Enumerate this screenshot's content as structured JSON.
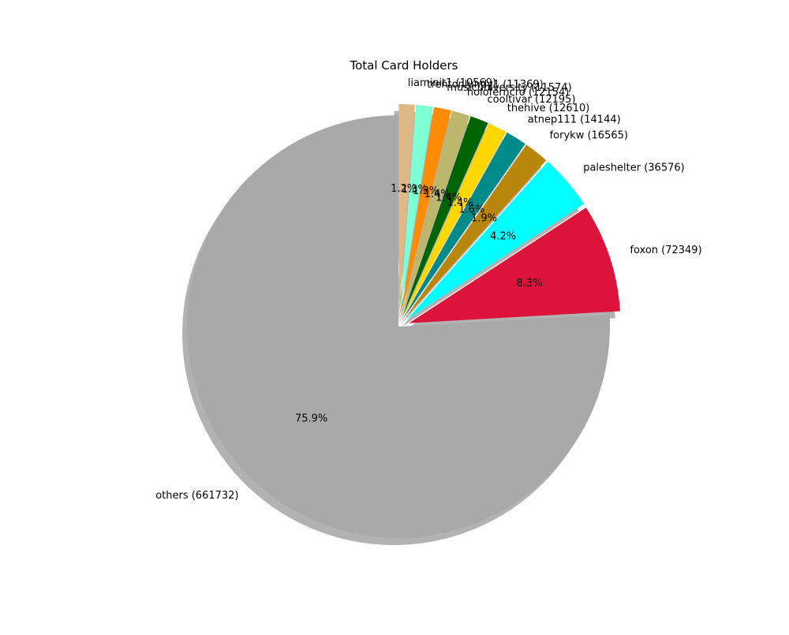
{
  "chart_data": {
    "type": "pie",
    "title": "Total Card Holders",
    "start_angle_deg": 90,
    "direction": "clockwise",
    "shadow": true,
    "slices": [
      {
        "name": "liaminit1",
        "label": "liaminit1 (10569)",
        "value": 10569,
        "pct_label": "1.2%",
        "color": "#DEB887",
        "explode": true
      },
      {
        "name": "trentonlundy1",
        "label": "trentonlundy1 (11369)",
        "value": 11369,
        "pct_label": "1.3%",
        "color": "#7FFFD4",
        "explode": true
      },
      {
        "name": "musicuniversity",
        "label": "musicuniversity (11574)",
        "value": 11574,
        "pct_label": "1.3%",
        "color": "#FF8C00",
        "explode": true
      },
      {
        "name": "holoferncro",
        "label": "holoferncro (12154)",
        "value": 12154,
        "pct_label": "1.4%",
        "color": "#BDB76B",
        "explode": true
      },
      {
        "name": "cooltivar",
        "label": "cooltivar (12195)",
        "value": 12195,
        "pct_label": "1.4%",
        "color": "#006400",
        "explode": true
      },
      {
        "name": "thehive",
        "label": "thehive (12610)",
        "value": 12610,
        "pct_label": "1.4%",
        "color": "#FFD700",
        "explode": true
      },
      {
        "name": "atnep111",
        "label": "atnep111 (14144)",
        "value": 14144,
        "pct_label": "1.6%",
        "color": "#008B8B",
        "explode": true
      },
      {
        "name": "forykw",
        "label": "forykw (16565)",
        "value": 16565,
        "pct_label": "1.9%",
        "color": "#B8860B",
        "explode": true
      },
      {
        "name": "paleshelter",
        "label": "paleshelter (36576)",
        "value": 36576,
        "pct_label": "4.2%",
        "color": "#00FFFF",
        "explode": true
      },
      {
        "name": "foxon",
        "label": "foxon (72349)",
        "value": 72349,
        "pct_label": "8.3%",
        "color": "#DC143C",
        "explode": true
      },
      {
        "name": "others",
        "label": "others (661732)",
        "value": 661732,
        "pct_label": "75.9%",
        "color": "#A9A9A9",
        "explode": false
      }
    ]
  }
}
